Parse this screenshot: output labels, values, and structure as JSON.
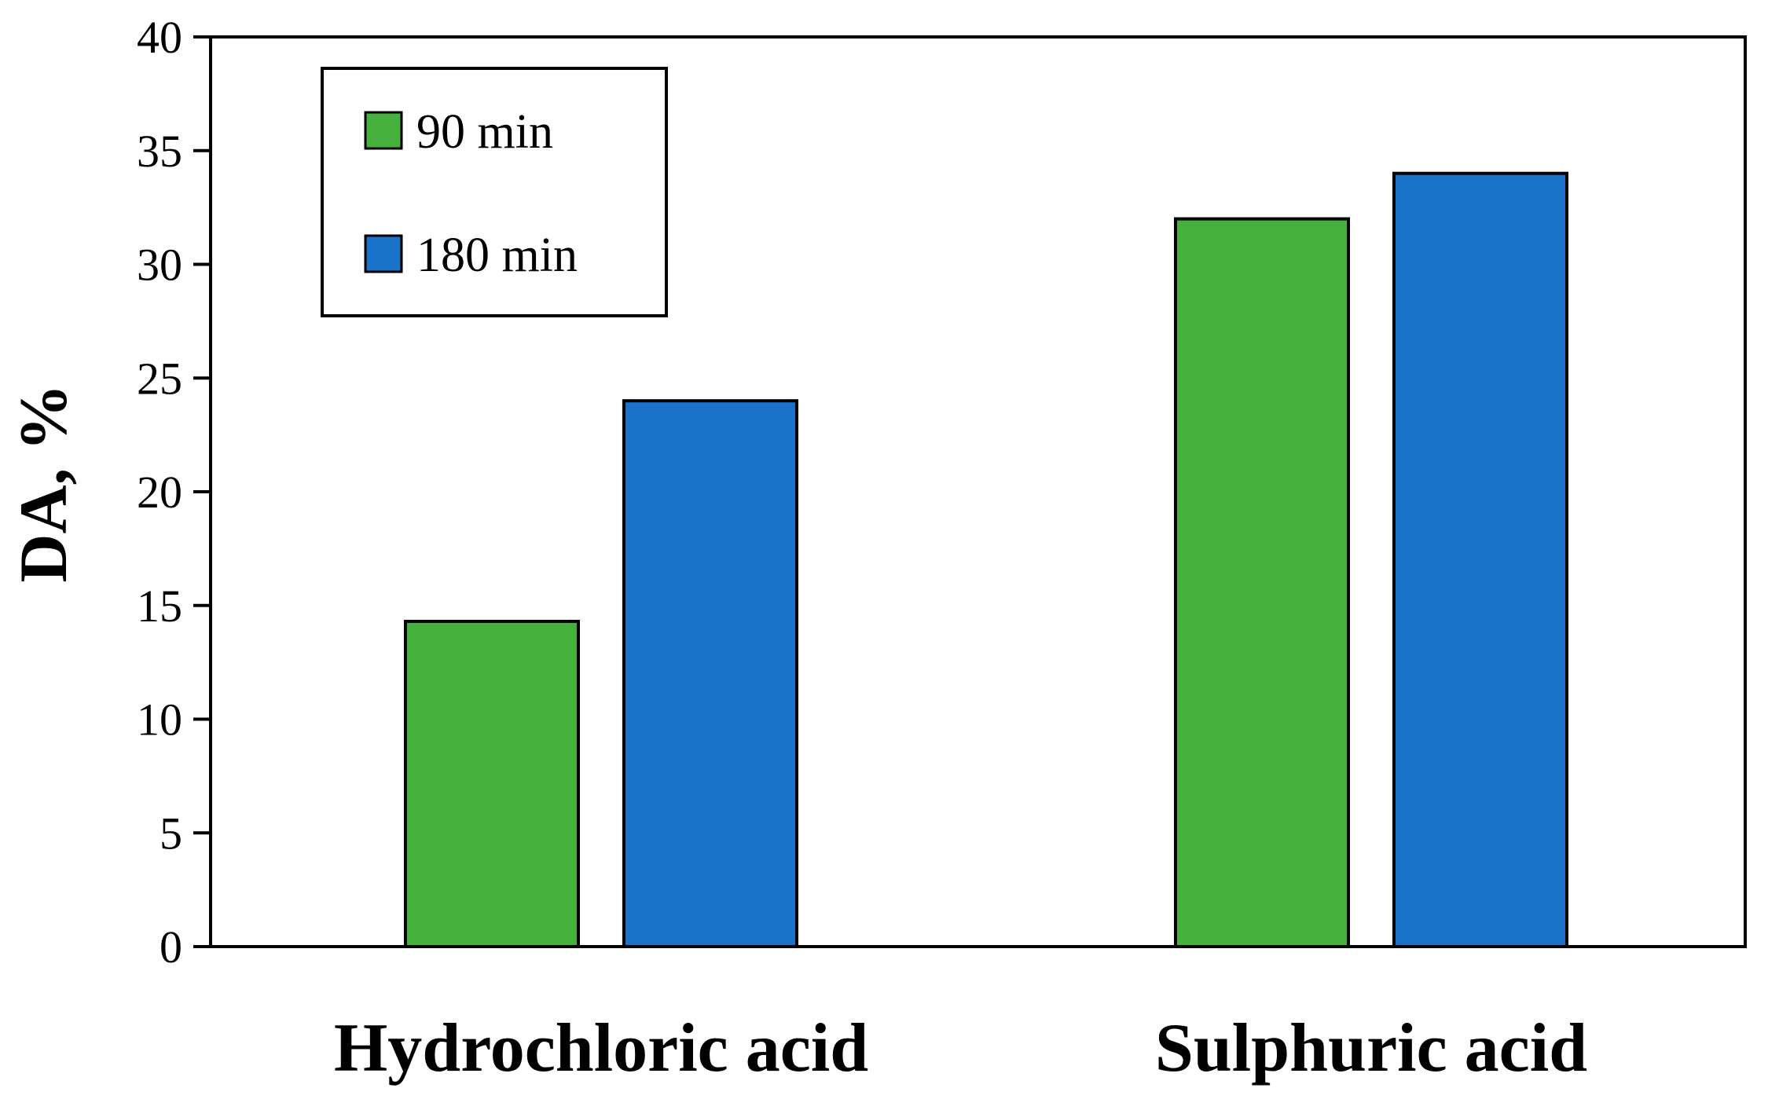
{
  "chart_data": {
    "type": "bar",
    "categories": [
      "Hydrochloric acid",
      "Sulphuric acid"
    ],
    "series": [
      {
        "name": "90 min",
        "values": [
          14.3,
          32.0
        ],
        "color": "#46b03c"
      },
      {
        "name": "180 min",
        "values": [
          24.0,
          34.0
        ],
        "color": "#1a73c9"
      }
    ],
    "xlabel": "",
    "ylabel": "DA, %",
    "ylim": [
      0,
      40
    ],
    "yticks": [
      0,
      5,
      10,
      15,
      20,
      25,
      30,
      35,
      40
    ],
    "grid": false,
    "legend_position": "top-left"
  }
}
